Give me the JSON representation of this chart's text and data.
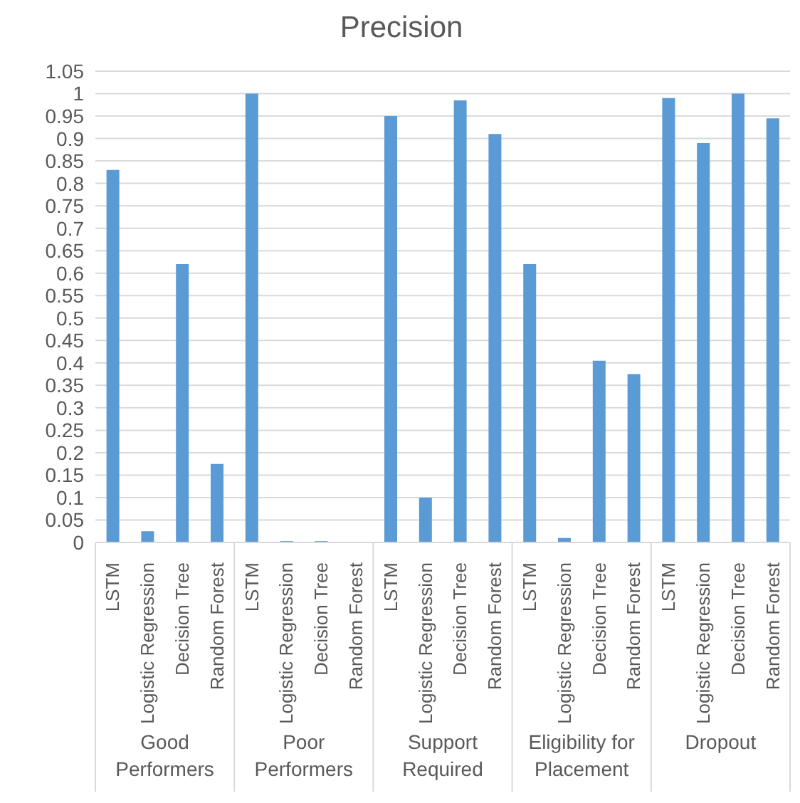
{
  "chart_data": {
    "type": "bar",
    "title": "Precision",
    "categories": [
      "LSTM",
      "Logistic Regression",
      "Decision Tree",
      "Random Forest",
      "LSTM",
      "Logistic Regression",
      "Decision Tree",
      "Random Forest",
      "LSTM",
      "Logistic Regression",
      "Decision Tree",
      "Random Forest",
      "LSTM",
      "Logistic Regression",
      "Decision Tree",
      "Random Forest",
      "LSTM",
      "Logistic Regression",
      "Decision Tree",
      "Random Forest"
    ],
    "values": [
      0.83,
      0.025,
      0.62,
      0.175,
      1.0,
      0.003,
      0.003,
      0,
      0.95,
      0.1,
      0.985,
      0.91,
      0.62,
      0.01,
      0.405,
      0.375,
      0.99,
      0.89,
      1.0,
      0.945
    ],
    "color": "#5b9bd5",
    "annotations": [
      "Good Performers",
      "Poor Performers",
      "Support Required",
      "Eligibility for Placement",
      "Dropout"
    ],
    "ylim": [
      0,
      1.05
    ],
    "yticks": [
      0,
      0.05,
      0.1,
      0.15,
      0.2,
      0.25,
      0.3,
      0.35,
      0.4,
      0.45,
      0.5,
      0.55,
      0.6,
      0.65,
      0.7,
      0.75,
      0.8,
      0.85,
      0.9,
      0.95,
      1,
      1.05
    ],
    "grid": "y"
  }
}
